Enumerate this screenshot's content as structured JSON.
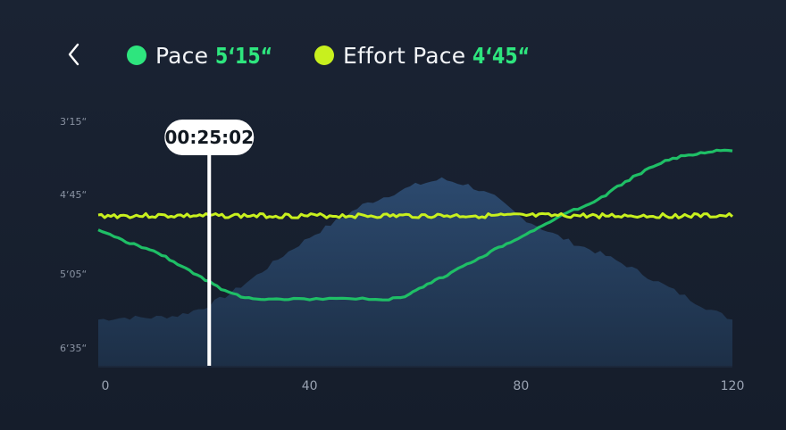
{
  "header": {
    "back_icon": "chevron-left-icon",
    "legend": [
      {
        "label": "Pace",
        "value": "5‘15“",
        "dot_color": "#2ee57e",
        "value_color": "#2ee57e"
      },
      {
        "label": "Effort Pace",
        "value": "4‘45“",
        "dot_color": "#c8f01e",
        "value_color": "#2ee57e"
      }
    ]
  },
  "colors": {
    "background": "#172030",
    "pace_line": "#1fbf66",
    "effort_line": "#c8f01e",
    "elevation_fill": "#2a4669",
    "cursor": "#ffffff"
  },
  "chart_data": {
    "type": "line",
    "title": "",
    "xlabel": "",
    "ylabel": "",
    "x_ticks": [
      0,
      40,
      80,
      120
    ],
    "xlim": [
      0,
      120
    ],
    "y_ticks": [
      "3‘15“",
      "4‘45“",
      "5‘05“",
      "6‘35“"
    ],
    "cursor": {
      "x": 21,
      "label": "00:25:02"
    },
    "series": [
      {
        "name": "Pace",
        "x": [
          0,
          3,
          6,
          9,
          12,
          15,
          18,
          21,
          24,
          27,
          30,
          33,
          36,
          40,
          45,
          50,
          55,
          58,
          60,
          63,
          66,
          69,
          72,
          75,
          78,
          81,
          84,
          87,
          90,
          93,
          96,
          99,
          102,
          105,
          108,
          111,
          114,
          117,
          120
        ],
        "values": [
          4.8,
          4.88,
          4.98,
          5.05,
          5.15,
          5.28,
          5.42,
          5.55,
          5.68,
          5.76,
          5.79,
          5.8,
          5.8,
          5.8,
          5.8,
          5.8,
          5.8,
          5.78,
          5.68,
          5.56,
          5.45,
          5.32,
          5.2,
          5.08,
          4.96,
          4.85,
          4.73,
          4.6,
          4.5,
          4.4,
          4.28,
          4.12,
          3.98,
          3.86,
          3.76,
          3.7,
          3.66,
          3.63,
          3.63
        ]
      },
      {
        "name": "Effort Pace",
        "x": [
          0,
          120
        ],
        "values": [
          4.58,
          4.58
        ]
      }
    ],
    "elevation": {
      "x": [
        0,
        5,
        10,
        15,
        20,
        25,
        30,
        35,
        40,
        45,
        50,
        55,
        60,
        65,
        70,
        75,
        80,
        85,
        90,
        95,
        100,
        105,
        110,
        115,
        120
      ],
      "values": [
        0.23,
        0.24,
        0.24,
        0.25,
        0.29,
        0.36,
        0.45,
        0.55,
        0.64,
        0.72,
        0.8,
        0.85,
        0.9,
        0.93,
        0.9,
        0.84,
        0.74,
        0.67,
        0.61,
        0.56,
        0.5,
        0.43,
        0.36,
        0.29,
        0.23
      ],
      "note_units": "relative"
    }
  }
}
